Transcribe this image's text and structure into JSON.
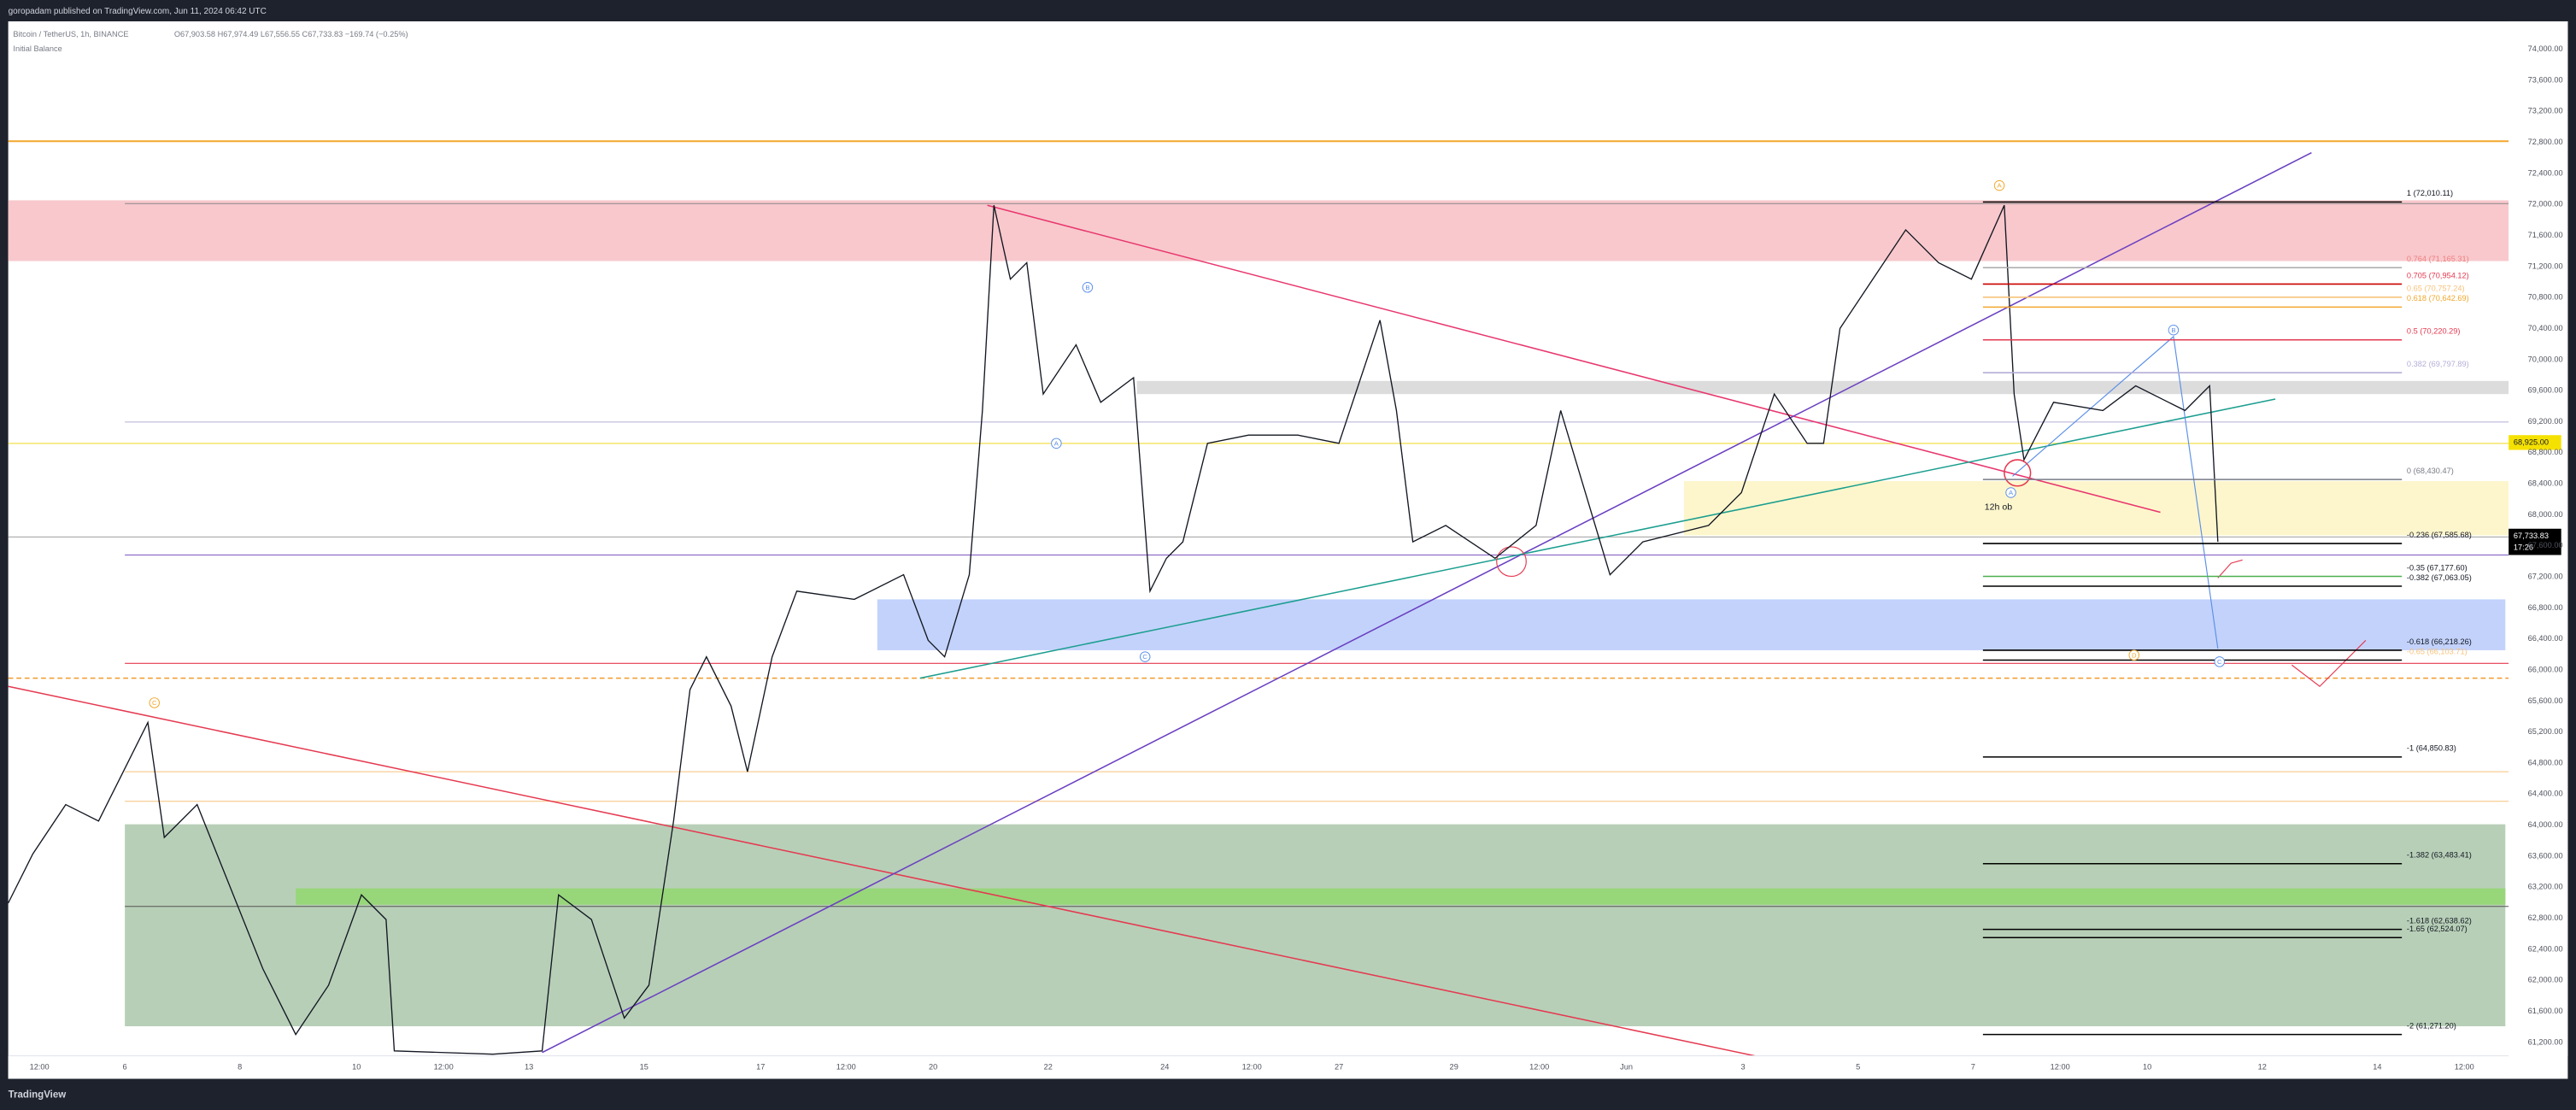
{
  "header": {
    "published": "goropadam published on TradingView.com, Jun 11, 2024 06:42 UTC",
    "symbol": "Bitcoin / TetherUS, 1h, BINANCE",
    "ohlc": "O67,903.58 H67,974.49 L67,556.55 C67,733.83 −169.74 (−0.25%)",
    "indicator": "Initial Balance"
  },
  "price_axis": {
    "labels": [
      "74,000.00",
      "73,600.00",
      "73,200.00",
      "72,800.00",
      "72,400.00",
      "72,000.00",
      "71,600.00",
      "71,200.00",
      "70,800.00",
      "70,400.00",
      "70,000.00",
      "69,600.00",
      "69,200.00",
      "68,800.00",
      "68,400.00",
      "68,000.00",
      "67,600.00",
      "67,200.00",
      "66,800.00",
      "66,400.00",
      "66,000.00",
      "65,600.00",
      "65,200.00",
      "64,800.00",
      "64,400.00",
      "64,000.00",
      "63,600.00",
      "63,200.00",
      "62,800.00",
      "62,400.00",
      "62,000.00",
      "61,600.00",
      "61,200.00"
    ]
  },
  "price_tags": {
    "level": "68,925.00",
    "last": "67,733.83",
    "countdown": "17:26"
  },
  "time_axis": {
    "labels": [
      "12:00",
      "6",
      "8",
      "10",
      "12:00",
      "13",
      "15",
      "17",
      "12:00",
      "20",
      "22",
      "24",
      "12:00",
      "27",
      "29",
      "12:00",
      "Jun",
      "3",
      "5",
      "7",
      "12:00",
      "10",
      "12",
      "14",
      "12:00"
    ]
  },
  "fib_levels": [
    "1 (72,010.11)",
    "0.764 (71,165.31)",
    "0.705 (70,954.12)",
    "0.65 (70,757.24)",
    "0.618 (70,642.69)",
    "0.5 (70,220.29)",
    "0.382 (69,797.89)",
    "0 (68,430.47)",
    "-0.236 (67,585.68)",
    "-0.35 (67,177.60)",
    "-0.382 (67,063.05)",
    "-0.618 (66,218.26)",
    "-0.65 (66,103.71)",
    "-1 (64,850.83)",
    "-1.382 (63,483.41)",
    "-1.618 (62,638.62)",
    "-1.65 (62,524.07)",
    "-2 (61,271.20)"
  ],
  "annotations": {
    "zone_label": "12h ob",
    "waves": [
      "A",
      "B",
      "A",
      "C",
      "C",
      "A",
      "B",
      "C",
      "D"
    ]
  },
  "footer": {
    "brand": "TradingView"
  }
}
